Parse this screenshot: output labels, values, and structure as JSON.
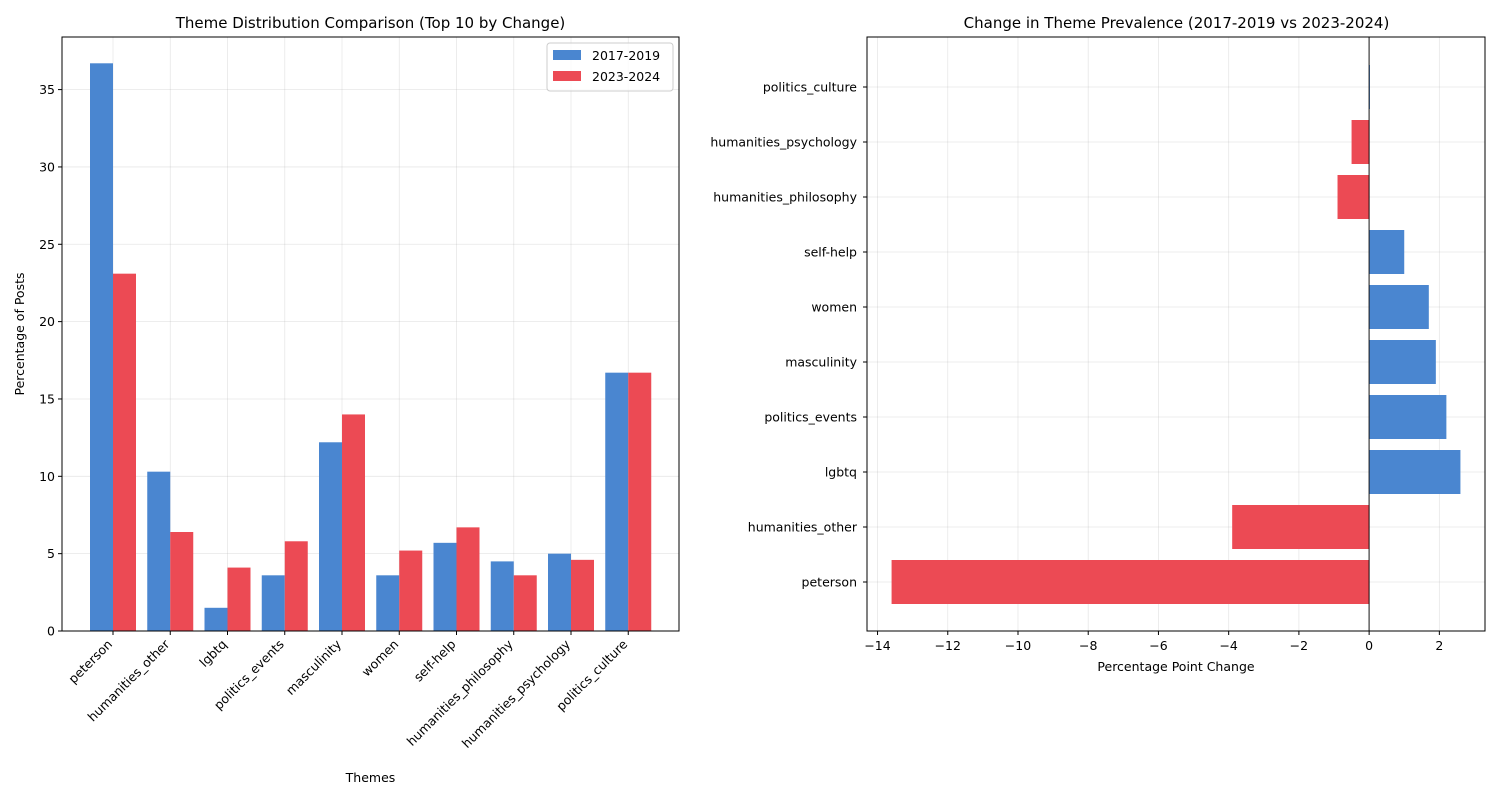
{
  "chart_data": [
    {
      "type": "bar",
      "title": "Theme Distribution Comparison (Top 10 by Change)",
      "xlabel": "Themes",
      "ylabel": "Percentage of Posts",
      "ylim": [
        0,
        38.4
      ],
      "yticks": [
        0,
        5,
        10,
        15,
        20,
        25,
        30,
        35
      ],
      "grid": true,
      "legend_position": "top-right",
      "categories": [
        "peterson",
        "humanities_other",
        "lgbtq",
        "politics_events",
        "masculinity",
        "women",
        "self-help",
        "humanities_philosophy",
        "humanities_psychology",
        "politics_culture"
      ],
      "series": [
        {
          "name": "2017-2019",
          "color": "#4a86d0",
          "values": [
            36.7,
            10.3,
            1.5,
            3.6,
            12.2,
            3.6,
            5.7,
            4.5,
            5.0,
            16.7
          ]
        },
        {
          "name": "2023-2024",
          "color": "#ec4a54",
          "values": [
            23.1,
            6.4,
            4.1,
            5.8,
            14.0,
            5.2,
            6.7,
            3.6,
            4.6,
            16.7
          ]
        }
      ]
    },
    {
      "type": "bar",
      "orientation": "horizontal",
      "title": "Change in Theme Prevalence (2017-2019 vs 2023-2024)",
      "xlabel": "Percentage Point Change",
      "ylabel": "",
      "xlim": [
        -14.3,
        3.3
      ],
      "xticks": [
        -14,
        -12,
        -10,
        -8,
        -6,
        -4,
        -2,
        0,
        2
      ],
      "grid": true,
      "positive_color": "#4a86d0",
      "negative_color": "#ec4a54",
      "categories": [
        "peterson",
        "humanities_other",
        "lgbtq",
        "politics_events",
        "masculinity",
        "women",
        "self-help",
        "humanities_philosophy",
        "humanities_psychology",
        "politics_culture"
      ],
      "values": [
        -13.6,
        -3.9,
        2.6,
        2.2,
        1.9,
        1.7,
        1.0,
        -0.9,
        -0.5,
        0.0
      ]
    }
  ]
}
